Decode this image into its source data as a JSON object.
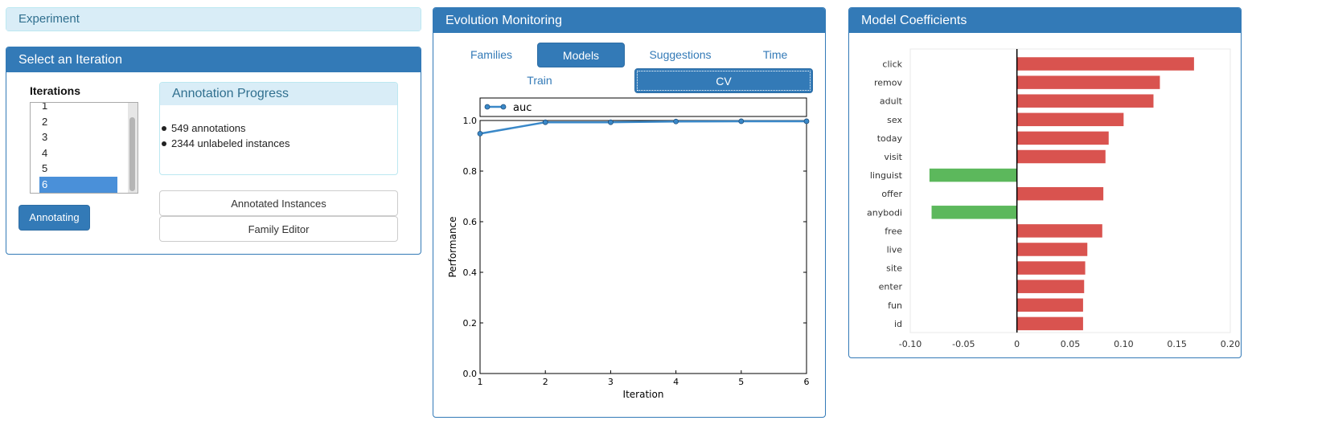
{
  "experiment": {
    "title": "Experiment"
  },
  "iteration_panel": {
    "title": "Select an Iteration",
    "iterations_label": "Iterations",
    "iterations": [
      "1",
      "2",
      "3",
      "4",
      "5",
      "6"
    ],
    "selected": "6",
    "annotating_button": "Annotating",
    "progress": {
      "title": "Annotation Progress",
      "items": [
        "549 annotations",
        "2344 unlabeled instances"
      ]
    },
    "annotated_instances_button": "Annotated Instances",
    "family_editor_button": "Family Editor"
  },
  "evolution_panel": {
    "title": "Evolution Monitoring",
    "tabs": [
      "Families",
      "Models",
      "Suggestions",
      "Time"
    ],
    "active_tab": "Models",
    "subtabs": [
      "Train",
      "CV"
    ],
    "active_subtab": "CV"
  },
  "coefficients_panel": {
    "title": "Model Coefficients"
  },
  "colors": {
    "primary": "#337ab7",
    "positive": "#d9534f",
    "negative": "#5cb85c",
    "line": "#3a88c8"
  },
  "chart_data": [
    {
      "type": "line",
      "xlabel": "Iteration",
      "ylabel": "Performance",
      "xlim": [
        1,
        6
      ],
      "ylim": [
        0.0,
        1.0
      ],
      "x_ticks": [
        "1",
        "2",
        "3",
        "4",
        "5",
        "6"
      ],
      "y_ticks": [
        "0.0",
        "0.2",
        "0.4",
        "0.6",
        "0.8",
        "1.0"
      ],
      "legend": "top",
      "series": [
        {
          "name": "auc",
          "x": [
            1,
            2,
            3,
            4,
            5,
            6
          ],
          "values": [
            0.948,
            0.993,
            0.993,
            0.996,
            0.997,
            0.997
          ]
        }
      ]
    },
    {
      "type": "bar",
      "orientation": "horizontal",
      "categories": [
        "click",
        "remov",
        "adult",
        "sex",
        "today",
        "visit",
        "linguist",
        "offer",
        "anybodi",
        "free",
        "live",
        "site",
        "enter",
        "fun",
        "id"
      ],
      "values": [
        0.166,
        0.134,
        0.128,
        0.1,
        0.086,
        0.083,
        -0.082,
        0.081,
        -0.08,
        0.08,
        0.066,
        0.064,
        0.063,
        0.062,
        0.062
      ],
      "xlim": [
        -0.1,
        0.2
      ],
      "x_ticks": [
        "-0.10",
        "-0.05",
        "0",
        "0.05",
        "0.10",
        "0.15",
        "0.20"
      ]
    }
  ]
}
